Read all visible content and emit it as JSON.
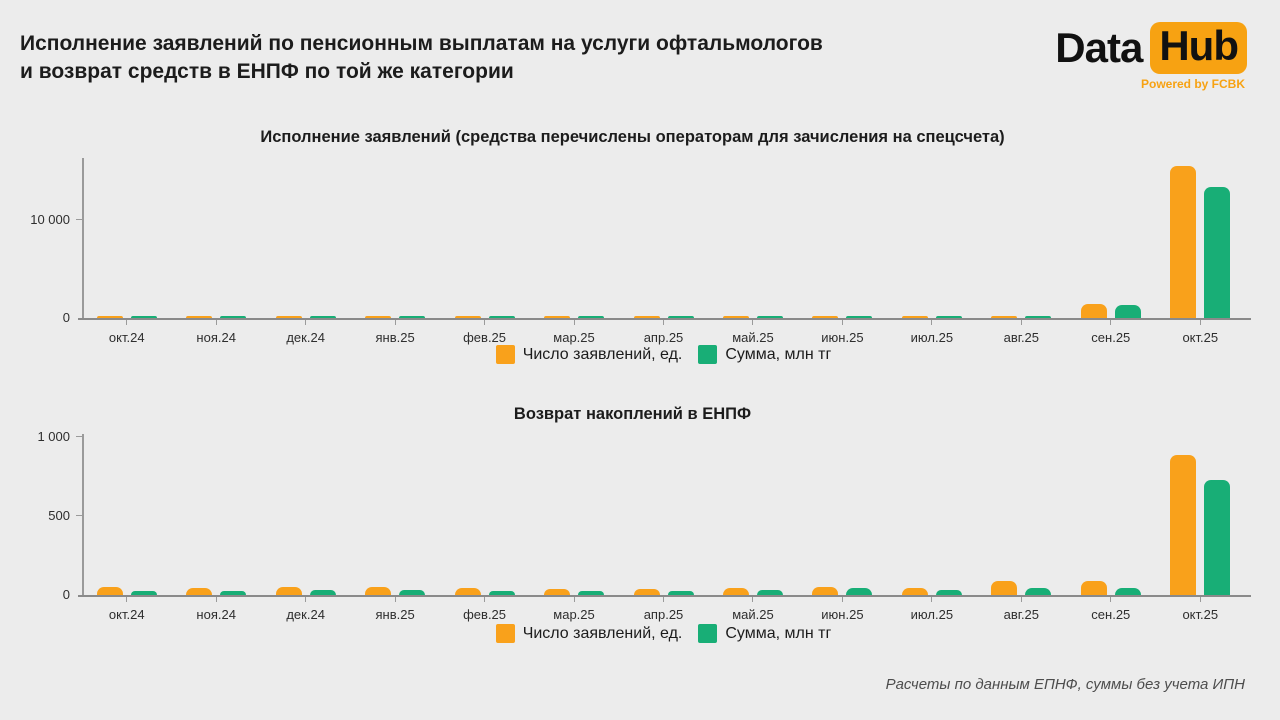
{
  "page": {
    "title_line1": "Исполнение заявлений по пенсионным выплатам на услуги офтальмологов",
    "title_line2": "и возврат средств в ЕНПФ по той же категории",
    "footer_note": "Расчеты по данным ЕПНФ, суммы без учета ИПН"
  },
  "logo": {
    "text_data": "Data",
    "text_hub": "Hub",
    "tagline": "Powered by FCBK"
  },
  "colors": {
    "applications": "#F9A11B",
    "amount": "#18AE76",
    "background": "#ECECEC",
    "axis": "#8C8C8C",
    "logo_accent": "#F7A212"
  },
  "legend": {
    "items": [
      {
        "label": "Число заявлений, ед.",
        "color_key": "applications"
      },
      {
        "label": "Сумма, млн тг",
        "color_key": "amount"
      }
    ]
  },
  "chart_data": [
    {
      "type": "bar",
      "title": "Исполнение заявлений (средства перечислены операторам для зачисления на спецсчета)",
      "categories": [
        "окт.24",
        "ноя.24",
        "дек.24",
        "янв.25",
        "фев.25",
        "мар.25",
        "апр.25",
        "май.25",
        "июн.25",
        "июл.25",
        "авг.25",
        "сен.25",
        "окт.25"
      ],
      "series": [
        {
          "name": "Число заявлений, ед.",
          "color": "#F9A11B",
          "values": [
            150,
            160,
            180,
            200,
            220,
            150,
            170,
            150,
            160,
            200,
            250,
            1450,
            15500
          ]
        },
        {
          "name": "Сумма, млн тг",
          "color": "#18AE76",
          "values": [
            100,
            110,
            130,
            150,
            180,
            100,
            120,
            100,
            120,
            150,
            200,
            1300,
            13300
          ]
        }
      ],
      "ylim": [
        0,
        16300
      ],
      "yticks": [
        {
          "value": 0,
          "label": "0"
        },
        {
          "value": 10000,
          "label": "10 000"
        }
      ],
      "grid": false,
      "legend_position": "bottom"
    },
    {
      "type": "bar",
      "title": "Возврат накоплений в ЕНПФ",
      "categories": [
        "окт.24",
        "ноя.24",
        "дек.24",
        "янв.25",
        "фев.25",
        "мар.25",
        "апр.25",
        "май.25",
        "июн.25",
        "июл.25",
        "авг.25",
        "сен.25",
        "окт.25"
      ],
      "series": [
        {
          "name": "Число заявлений, ед.",
          "color": "#F9A11B",
          "values": [
            48,
            45,
            52,
            50,
            46,
            35,
            40,
            42,
            52,
            45,
            90,
            86,
            890
          ]
        },
        {
          "name": "Сумма, млн тг",
          "color": "#18AE76",
          "values": [
            28,
            26,
            32,
            32,
            28,
            24,
            26,
            30,
            42,
            32,
            42,
            45,
            730
          ]
        }
      ],
      "ylim": [
        0,
        1020
      ],
      "yticks": [
        {
          "value": 0,
          "label": "0"
        },
        {
          "value": 500,
          "label": "500"
        },
        {
          "value": 1000,
          "label": "1 000"
        }
      ],
      "grid": false,
      "legend_position": "bottom"
    }
  ]
}
